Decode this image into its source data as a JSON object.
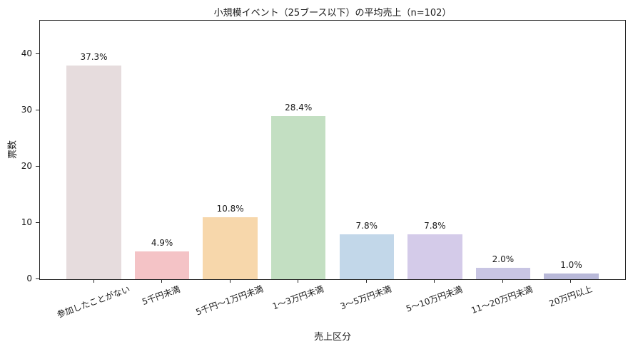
{
  "chart_data": {
    "type": "bar",
    "title": "小規模イベント（25ブース以下）の平均売上（n=102）",
    "xlabel": "売上区分",
    "ylabel": "票数",
    "categories": [
      "参加したことがない",
      "5千円未満",
      "5千円〜1万円未満",
      "1〜3万円未満",
      "3〜5万円未満",
      "5〜10万円未満",
      "11〜20万円未満",
      "20万円以上"
    ],
    "values": [
      38,
      5,
      11,
      29,
      8,
      8,
      2,
      1
    ],
    "percent_labels": [
      "37.3%",
      "4.9%",
      "10.8%",
      "28.4%",
      "7.8%",
      "7.8%",
      "2.0%",
      "1.0%"
    ],
    "bar_colors": [
      "#e6dcdd",
      "#f4c3c6",
      "#f7d7ab",
      "#c3dfc2",
      "#c2d7e9",
      "#d4cbe9",
      "#c8c5e3",
      "#b8b8d8"
    ],
    "yticks": [
      0,
      10,
      20,
      30,
      40
    ],
    "ylim": [
      0,
      46
    ],
    "bar_width_fraction": 0.8,
    "x_tick_rotation_deg": 20,
    "grid": false,
    "legend": null
  },
  "colors": {
    "text": "#1a1a1a",
    "spine": "#262626",
    "background": "#ffffff"
  }
}
